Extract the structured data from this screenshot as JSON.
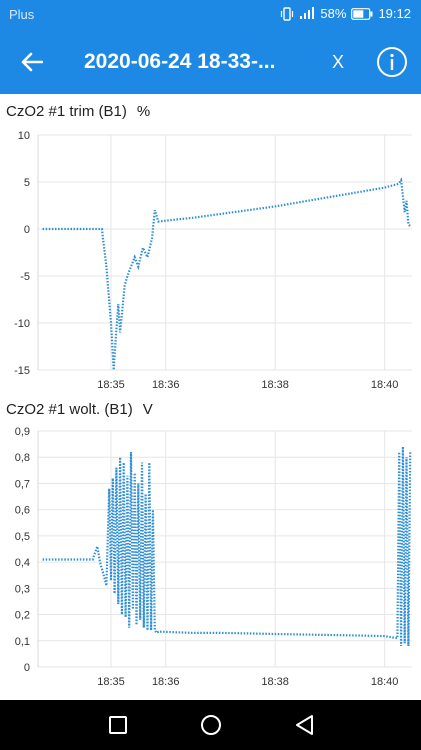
{
  "status_bar": {
    "carrier": "Plus",
    "battery": "58%",
    "time": "19:12",
    "icons": [
      "vibrate-icon",
      "signal-icon",
      "battery-icon"
    ]
  },
  "app_bar": {
    "back_icon": "arrow-left-icon",
    "title": "2020-06-24 18-33-...",
    "close_label": "X",
    "info_icon": "info-circle-icon"
  },
  "colors": {
    "primary": "#1e88e5",
    "series": "#2f8fd6",
    "grid": "#e6e6e6",
    "navbar": "#000000"
  },
  "charts": [
    {
      "title": "CzO2 #1 trim (B1)",
      "unit": "%"
    },
    {
      "title": "CzO2 #1 wolt. (B1)",
      "unit": "V"
    }
  ],
  "chart_data": [
    {
      "type": "line",
      "title": "CzO2 #1 trim (B1)",
      "ylabel": "%",
      "x_ticks": [
        "18:35",
        "18:36",
        "18:38",
        "18:40"
      ],
      "xlim": [
        "18:33:40",
        "18:40:30"
      ],
      "ylim": [
        -15,
        10
      ],
      "y_ticks": [
        "10",
        "5",
        "0",
        "-5",
        "-10",
        "-15"
      ],
      "grid": true,
      "series": [
        {
          "x": [
            "18:33:45",
            "18:34:00",
            "18:34:15",
            "18:34:30",
            "18:34:40",
            "18:34:50",
            "18:34:55",
            "18:35:00",
            "18:35:03",
            "18:35:05",
            "18:35:08",
            "18:35:10",
            "18:35:15",
            "18:35:18",
            "18:35:22",
            "18:35:26",
            "18:35:30",
            "18:35:35",
            "18:35:40",
            "18:35:45",
            "18:35:48",
            "18:35:52",
            "18:36:30",
            "18:37:00",
            "18:37:30",
            "18:38:00",
            "18:38:30",
            "18:39:00",
            "18:39:30",
            "18:40:00",
            "18:40:15",
            "18:40:18",
            "18:40:20",
            "18:40:22",
            "18:40:24",
            "18:40:26",
            "18:40:28"
          ],
          "y": [
            0,
            0,
            0,
            0,
            0,
            0,
            -4,
            -10,
            -15,
            -12,
            -8,
            -11,
            -6,
            -5,
            -4,
            -3,
            -4,
            -2,
            -3,
            -1,
            2,
            0.8,
            1.2,
            1.6,
            2.0,
            2.4,
            2.9,
            3.4,
            3.9,
            4.4,
            4.8,
            5.2,
            3.5,
            1.8,
            3.0,
            0.5,
            0.3
          ]
        }
      ]
    },
    {
      "type": "line",
      "title": "CzO2 #1 wolt. (B1)",
      "ylabel": "V",
      "x_ticks": [
        "18:35",
        "18:36",
        "18:38",
        "18:40"
      ],
      "xlim": [
        "18:33:40",
        "18:40:30"
      ],
      "ylim": [
        0,
        0.9
      ],
      "y_ticks": [
        "0,9",
        "0,8",
        "0,7",
        "0,6",
        "0,5",
        "0,4",
        "0,3",
        "0,2",
        "0,1",
        "0"
      ],
      "grid": true,
      "series": [
        {
          "x": [
            "18:33:45",
            "18:34:00",
            "18:34:15",
            "18:34:30",
            "18:34:40",
            "18:34:45",
            "18:34:48",
            "18:34:52",
            "18:34:55",
            "18:34:58",
            "18:35:00",
            "18:35:02",
            "18:35:04",
            "18:35:06",
            "18:35:08",
            "18:35:10",
            "18:35:12",
            "18:35:14",
            "18:35:16",
            "18:35:18",
            "18:35:20",
            "18:35:22",
            "18:35:24",
            "18:35:26",
            "18:35:28",
            "18:35:30",
            "18:35:32",
            "18:35:34",
            "18:35:36",
            "18:35:38",
            "18:35:40",
            "18:35:42",
            "18:35:44",
            "18:35:46",
            "18:35:48",
            "18:35:50",
            "18:35:52",
            "18:36:30",
            "18:37:00",
            "18:37:30",
            "18:38:00",
            "18:38:30",
            "18:39:00",
            "18:39:30",
            "18:40:00",
            "18:40:14",
            "18:40:16",
            "18:40:18",
            "18:40:20",
            "18:40:22",
            "18:40:24",
            "18:40:26",
            "18:40:28"
          ],
          "y": [
            0.41,
            0.41,
            0.41,
            0.41,
            0.41,
            0.46,
            0.4,
            0.35,
            0.31,
            0.68,
            0.33,
            0.72,
            0.28,
            0.76,
            0.24,
            0.8,
            0.2,
            0.78,
            0.19,
            0.73,
            0.15,
            0.82,
            0.22,
            0.74,
            0.16,
            0.7,
            0.18,
            0.78,
            0.15,
            0.66,
            0.14,
            0.78,
            0.14,
            0.6,
            0.14,
            0.13,
            0.135,
            0.13,
            0.13,
            0.128,
            0.126,
            0.124,
            0.122,
            0.12,
            0.118,
            0.11,
            0.82,
            0.08,
            0.84,
            0.09,
            0.8,
            0.08,
            0.82
          ]
        }
      ]
    }
  ]
}
